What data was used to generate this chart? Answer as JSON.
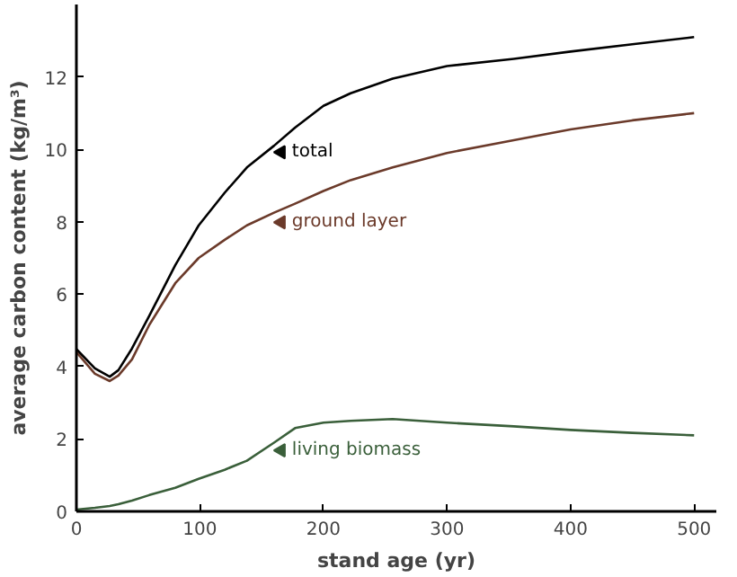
{
  "chart_data": {
    "type": "line",
    "xlabel": "stand age (yr)",
    "ylabel": "average carbon content (kg/m³)",
    "x": [
      0,
      15,
      27,
      34,
      45,
      59,
      80,
      99,
      120,
      138,
      160,
      177,
      200,
      222,
      256,
      300,
      354,
      400,
      450,
      500
    ],
    "series": [
      {
        "name": "total",
        "color": "#000000",
        "values": [
          4.48,
          3.95,
          3.72,
          3.9,
          4.5,
          5.4,
          6.8,
          7.9,
          8.8,
          9.5,
          10.1,
          10.6,
          11.2,
          11.55,
          11.95,
          12.3,
          12.5,
          12.7,
          12.9,
          13.1
        ]
      },
      {
        "name": "ground layer",
        "color": "#6b3a2a",
        "values": [
          4.4,
          3.8,
          3.6,
          3.75,
          4.2,
          5.15,
          6.3,
          7.0,
          7.5,
          7.9,
          8.25,
          8.5,
          8.85,
          9.15,
          9.5,
          9.9,
          10.25,
          10.55,
          10.8,
          11.0
        ]
      },
      {
        "name": "living biomass",
        "color": "#3a5f3a",
        "values": [
          0.05,
          0.1,
          0.15,
          0.2,
          0.3,
          0.45,
          0.65,
          0.9,
          1.15,
          1.4,
          1.9,
          2.3,
          2.45,
          2.5,
          2.55,
          2.45,
          2.35,
          2.25,
          2.17,
          2.1
        ]
      }
    ],
    "xlim": [
      0,
      518
    ],
    "ylim": [
      0,
      14
    ],
    "xticks": [
      0,
      100,
      200,
      300,
      400,
      500
    ],
    "yticks": [
      0,
      2,
      4,
      6,
      8,
      10,
      12
    ],
    "grid": false,
    "legend": "center"
  }
}
